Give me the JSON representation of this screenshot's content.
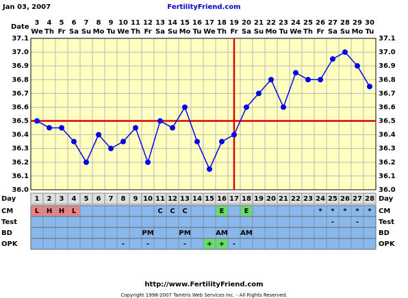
{
  "header": {
    "date": "Jan 03, 2007",
    "site": "FertilityFriend.com"
  },
  "chart_data": {
    "type": "line",
    "x_label": "Date",
    "categories": [
      "3",
      "4",
      "5",
      "6",
      "7",
      "8",
      "9",
      "10",
      "11",
      "12",
      "13",
      "14",
      "15",
      "16",
      "17",
      "18",
      "19",
      "20",
      "21",
      "22",
      "23",
      "24",
      "25",
      "26",
      "27",
      "28",
      "29",
      "30"
    ],
    "weekdays": [
      "We",
      "Th",
      "Fr",
      "Sa",
      "Su",
      "Mo",
      "Tu",
      "We",
      "Th",
      "Fr",
      "Sa",
      "Su",
      "Mo",
      "Tu",
      "We",
      "Th",
      "Fr",
      "Sa",
      "Su",
      "Mo",
      "Tu",
      "We",
      "Th",
      "Fr",
      "Sa",
      "Su",
      "Mo",
      "Tu"
    ],
    "day_label": "Day",
    "days": [
      1,
      2,
      3,
      4,
      5,
      6,
      7,
      8,
      9,
      10,
      11,
      12,
      13,
      14,
      15,
      16,
      17,
      18,
      19,
      20,
      21,
      22,
      23,
      24,
      25,
      26,
      27,
      28
    ],
    "series": [
      {
        "color": "#0000ee",
        "values": [
          36.5,
          36.45,
          36.45,
          36.35,
          36.2,
          36.4,
          36.3,
          36.35,
          36.45,
          36.2,
          36.5,
          36.45,
          36.6,
          36.35,
          36.15,
          36.35,
          36.4,
          36.6,
          36.7,
          36.8,
          36.6,
          36.85,
          36.8,
          36.8,
          36.95,
          37.0,
          36.9,
          36.75
        ]
      }
    ],
    "ylim": [
      36.0,
      37.1
    ],
    "yticks": [
      {
        "value": 36.0,
        "label": "36.0"
      },
      {
        "value": 36.1,
        "label": "36.1"
      },
      {
        "value": 36.2,
        "label": "36.2"
      },
      {
        "value": 36.3,
        "label": "36.3"
      },
      {
        "value": 36.4,
        "label": "36.4"
      },
      {
        "value": 36.5,
        "label": "36.5"
      },
      {
        "value": 36.6,
        "label": "36.6"
      },
      {
        "value": 36.7,
        "label": "36.7"
      },
      {
        "value": 36.8,
        "label": "36.8"
      },
      {
        "value": 36.9,
        "label": "36.9"
      },
      {
        "value": 37.0,
        "label": "37.0"
      },
      {
        "value": 37.1,
        "label": "37.1"
      }
    ],
    "grid": true,
    "coverline": 36.5,
    "ovulation_day": 17,
    "marker_line_color": "#dd0000",
    "cell_colors": {
      "L": "#f08080",
      "H": "#f08080",
      "E": "#66dd66",
      "+": "#66dd66"
    },
    "rows": [
      {
        "label": "CM",
        "values": [
          "L",
          "H",
          "H",
          "L",
          null,
          null,
          null,
          null,
          null,
          null,
          "C",
          "C",
          "C",
          null,
          null,
          "E",
          null,
          "E",
          null,
          null,
          null,
          null,
          null,
          "*",
          "*",
          "*",
          "*",
          "*"
        ]
      },
      {
        "label": "Test",
        "values": [
          null,
          null,
          null,
          null,
          null,
          null,
          null,
          null,
          null,
          null,
          null,
          null,
          null,
          null,
          null,
          null,
          null,
          null,
          null,
          null,
          null,
          null,
          null,
          null,
          "-",
          null,
          "-",
          null
        ]
      },
      {
        "label": "BD",
        "values": [
          null,
          null,
          null,
          null,
          null,
          null,
          null,
          null,
          null,
          "PM",
          null,
          null,
          "PM",
          null,
          null,
          "AM",
          null,
          "AM",
          null,
          null,
          null,
          null,
          null,
          null,
          null,
          null,
          null,
          null
        ]
      },
      {
        "label": "OPK",
        "values": [
          null,
          null,
          null,
          null,
          null,
          null,
          null,
          "-",
          null,
          "-",
          null,
          null,
          "-",
          null,
          "+",
          "+",
          "-",
          null,
          null,
          null,
          null,
          null,
          null,
          null,
          null,
          null,
          null,
          null
        ]
      }
    ]
  },
  "footer": {
    "url": "http://www.FertilityFriend.com",
    "copyright": "Copyright 1998-2007 Tamtris Web Services Inc. - All Rights Reserved."
  }
}
